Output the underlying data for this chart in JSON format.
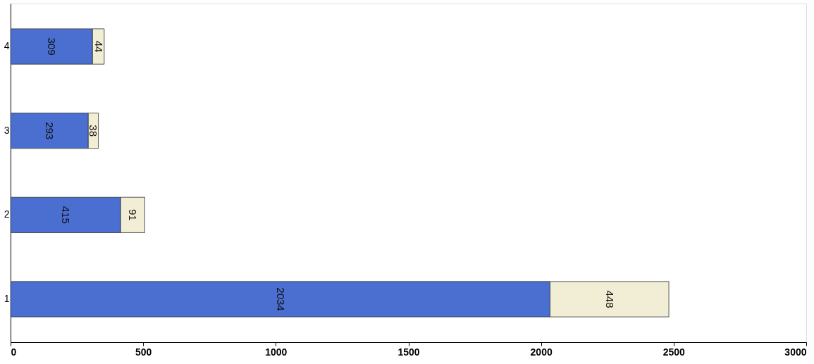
{
  "chart_data": {
    "type": "bar",
    "orientation": "horizontal",
    "stacked": true,
    "categories": [
      "4",
      "3",
      "2",
      "1"
    ],
    "series": [
      {
        "color": "#4a6fd0",
        "values": [
          309,
          293,
          415,
          2034
        ]
      },
      {
        "color": "#f2eed6",
        "values": [
          44,
          38,
          91,
          448
        ]
      }
    ],
    "xlim": [
      0,
      3000
    ],
    "xticks": [
      0,
      500,
      1000,
      1500,
      2000,
      2500,
      3000
    ],
    "data_labels": true,
    "grid": false,
    "legend": false
  }
}
